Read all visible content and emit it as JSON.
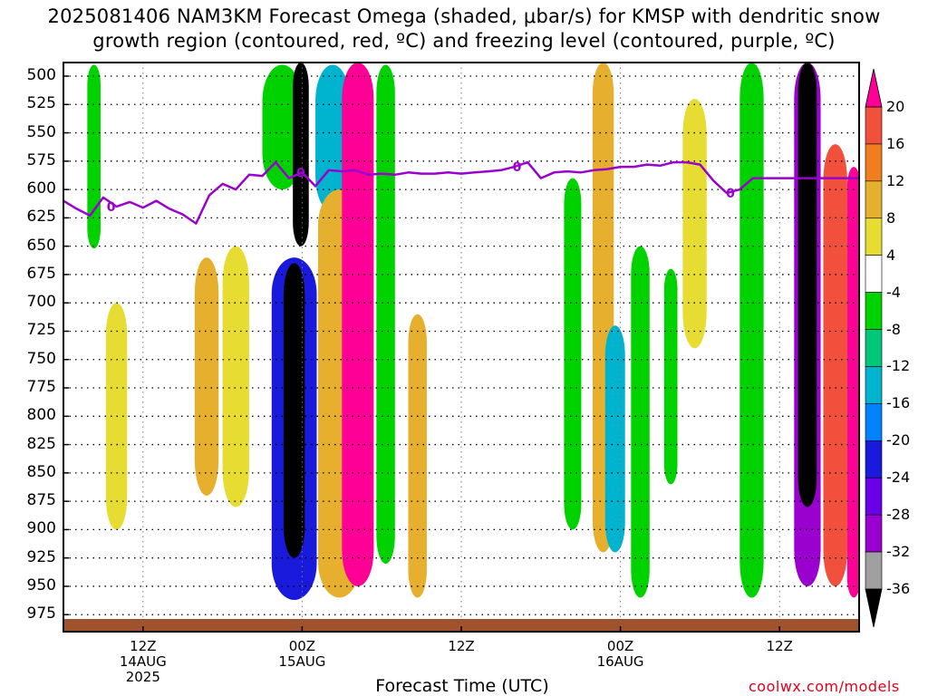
{
  "chart_data": {
    "type": "heatmap",
    "title_line1": "2025081406 NAM3KM Forecast Omega (shaded, μbar/s) for KMSP with dendritic snow",
    "title_line2": "growth region (contoured, red, ºC) and freezing level (contoured, purple, ºC)",
    "xlabel": "Forecast Time (UTC)",
    "y_ticks": [
      500,
      525,
      550,
      575,
      600,
      625,
      650,
      675,
      700,
      725,
      750,
      775,
      800,
      825,
      850,
      875,
      900,
      925,
      950,
      975
    ],
    "y_range": [
      488,
      990
    ],
    "x_ticks": [
      {
        "hour": 12,
        "lines": [
          "12Z",
          "14AUG",
          "2025"
        ]
      },
      {
        "hour": 24,
        "lines": [
          "00Z",
          "15AUG"
        ]
      },
      {
        "hour": 36,
        "lines": [
          "12Z"
        ]
      },
      {
        "hour": 48,
        "lines": [
          "00Z",
          "16AUG"
        ]
      },
      {
        "hour": 60,
        "lines": [
          "12Z"
        ]
      }
    ],
    "x_range_hours": [
      6,
      66
    ],
    "colorbar": {
      "labels": [
        "20",
        "16",
        "12",
        "8",
        "4",
        "-4",
        "-8",
        "-12",
        "-16",
        "-20",
        "-24",
        "-28",
        "-32",
        "-36"
      ],
      "levels": [
        -36,
        -32,
        -28,
        -24,
        -20,
        -16,
        -12,
        -8,
        -4,
        4,
        8,
        12,
        16,
        20
      ],
      "colors": [
        "#000000",
        "#a0a0a0",
        "#9a00ce",
        "#6a00e8",
        "#1a1adc",
        "#0082ff",
        "#00b4d0",
        "#00c878",
        "#00d200",
        "#ffffff",
        "#e6dc32",
        "#e6af2d",
        "#f07e1e",
        "#f0503c",
        "#ff0096"
      ]
    },
    "freezing_level": {
      "label": "0",
      "hours": [
        6,
        7,
        8,
        9,
        10,
        11,
        12,
        13,
        14,
        15,
        16,
        17,
        18,
        19,
        20,
        21,
        22,
        23,
        24,
        25,
        26,
        27,
        28,
        29,
        30,
        31,
        32,
        33,
        34,
        35,
        36,
        37,
        38,
        39,
        40,
        41,
        42,
        43,
        44,
        45,
        46,
        47,
        48,
        49,
        50,
        51,
        52,
        53,
        54,
        55,
        56,
        57,
        58,
        59,
        60,
        61,
        62,
        63,
        64,
        65,
        66
      ],
      "pressure_hpa": [
        610,
        617,
        623,
        607,
        615,
        611,
        616,
        610,
        617,
        622,
        630,
        605,
        595,
        600,
        587,
        588,
        576,
        590,
        585,
        597,
        583,
        584,
        583,
        587,
        586,
        587,
        585,
        586,
        586,
        585,
        586,
        585,
        584,
        583,
        580,
        576,
        590,
        585,
        584,
        585,
        583,
        582,
        580,
        580,
        578,
        579,
        576,
        576,
        578,
        592,
        603,
        600,
        590,
        590,
        590,
        590,
        590,
        590,
        590,
        590,
        590
      ]
    },
    "terrain_color": "#a0522d",
    "omega_fields": [
      {
        "center_hour": 8.3,
        "width_h": 1.0,
        "top": 490,
        "bottom": 652,
        "value": -6
      },
      {
        "center_hour": 10.0,
        "width_h": 1.6,
        "top": 700,
        "bottom": 900,
        "value": 7
      },
      {
        "center_hour": 16.8,
        "width_h": 1.8,
        "top": 660,
        "bottom": 870,
        "value": 11
      },
      {
        "center_hour": 19.0,
        "width_h": 2.0,
        "top": 650,
        "bottom": 880,
        "value": 6
      },
      {
        "center_hour": 22.5,
        "width_h": 3.0,
        "top": 490,
        "bottom": 600,
        "value": -7
      },
      {
        "center_hour": 23.4,
        "width_h": 3.4,
        "top": 660,
        "bottom": 962,
        "value": -22
      },
      {
        "center_hour": 23.4,
        "width_h": 1.6,
        "top": 665,
        "bottom": 925,
        "value": -40
      },
      {
        "center_hour": 23.9,
        "width_h": 1.2,
        "top": 488,
        "bottom": 650,
        "value": -40
      },
      {
        "center_hour": 26.3,
        "width_h": 2.6,
        "top": 490,
        "bottom": 620,
        "value": -14
      },
      {
        "center_hour": 26.8,
        "width_h": 3.2,
        "top": 600,
        "bottom": 960,
        "value": 10
      },
      {
        "center_hour": 28.2,
        "width_h": 2.4,
        "top": 488,
        "bottom": 950,
        "value": 24
      },
      {
        "center_hour": 30.3,
        "width_h": 1.4,
        "top": 490,
        "bottom": 930,
        "value": -6
      },
      {
        "center_hour": 32.7,
        "width_h": 1.4,
        "top": 710,
        "bottom": 960,
        "value": 9
      },
      {
        "center_hour": 44.4,
        "width_h": 1.3,
        "top": 590,
        "bottom": 900,
        "value": -6
      },
      {
        "center_hour": 46.7,
        "width_h": 1.6,
        "top": 488,
        "bottom": 920,
        "value": 11
      },
      {
        "center_hour": 47.6,
        "width_h": 1.5,
        "top": 720,
        "bottom": 920,
        "value": -14
      },
      {
        "center_hour": 49.5,
        "width_h": 1.4,
        "top": 650,
        "bottom": 960,
        "value": -6
      },
      {
        "center_hour": 51.8,
        "width_h": 1.0,
        "top": 670,
        "bottom": 860,
        "value": -6
      },
      {
        "center_hour": 53.6,
        "width_h": 1.8,
        "top": 520,
        "bottom": 740,
        "value": 6
      },
      {
        "center_hour": 57.9,
        "width_h": 1.8,
        "top": 488,
        "bottom": 960,
        "value": -7
      },
      {
        "center_hour": 62.1,
        "width_h": 2.0,
        "top": 488,
        "bottom": 950,
        "value": -32
      },
      {
        "center_hour": 62.1,
        "width_h": 1.4,
        "top": 488,
        "bottom": 880,
        "value": -40
      },
      {
        "center_hour": 64.2,
        "width_h": 1.8,
        "top": 560,
        "bottom": 950,
        "value": 16
      },
      {
        "center_hour": 65.6,
        "width_h": 1.0,
        "top": 580,
        "bottom": 960,
        "value": 20
      }
    ]
  },
  "credit": "coolwx.com/models"
}
